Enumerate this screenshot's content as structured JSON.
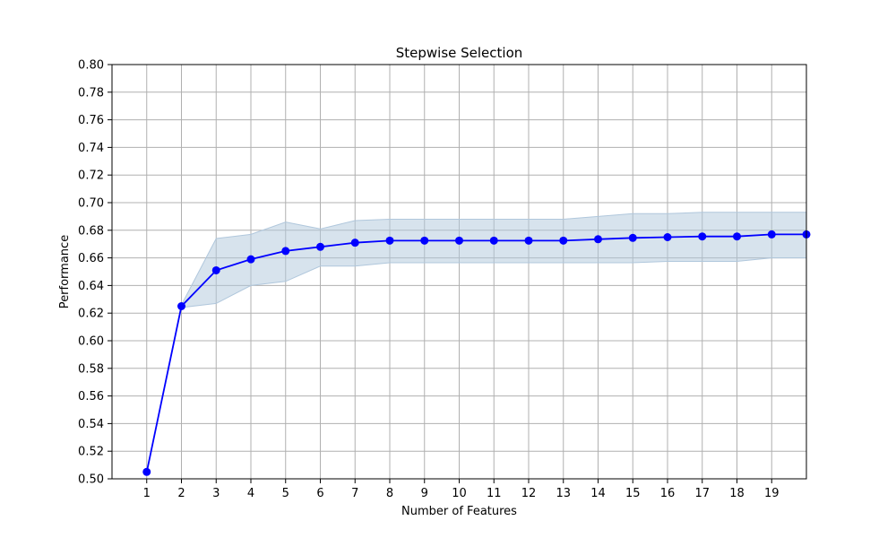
{
  "chart_data": {
    "type": "line",
    "title": "Stepwise Selection",
    "xlabel": "Number of Features",
    "ylabel": "Performance",
    "xlim": [
      0,
      20
    ],
    "ylim": [
      0.5,
      0.8
    ],
    "x_ticks": [
      1,
      2,
      3,
      4,
      5,
      6,
      7,
      8,
      9,
      10,
      11,
      12,
      13,
      14,
      15,
      16,
      17,
      18,
      19
    ],
    "y_ticks": [
      0.5,
      0.52,
      0.54,
      0.56,
      0.58,
      0.6,
      0.62,
      0.64,
      0.66,
      0.68,
      0.7,
      0.72,
      0.74,
      0.76,
      0.78,
      0.8
    ],
    "y_tick_labels": [
      "0.50",
      "0.52",
      "0.54",
      "0.56",
      "0.58",
      "0.60",
      "0.62",
      "0.64",
      "0.66",
      "0.68",
      "0.70",
      "0.72",
      "0.74",
      "0.76",
      "0.78",
      "0.80"
    ],
    "grid": true,
    "series": [
      {
        "x": [
          1,
          2,
          3,
          4,
          5,
          6,
          7,
          8,
          9,
          10,
          11,
          12,
          13,
          14,
          15,
          16,
          17,
          18,
          19,
          20
        ],
        "values": [
          0.505,
          0.625,
          0.651,
          0.659,
          0.665,
          0.668,
          0.671,
          0.6725,
          0.6725,
          0.6725,
          0.6725,
          0.6725,
          0.6725,
          0.6735,
          0.6745,
          0.675,
          0.6755,
          0.6755,
          0.677,
          0.677
        ],
        "band_upper": [
          0.505,
          0.626,
          0.674,
          0.677,
          0.686,
          0.681,
          0.687,
          0.688,
          0.688,
          0.688,
          0.688,
          0.688,
          0.688,
          0.69,
          0.692,
          0.692,
          0.693,
          0.693,
          0.693,
          0.693
        ],
        "band_lower": [
          0.505,
          0.624,
          0.627,
          0.64,
          0.643,
          0.654,
          0.654,
          0.6565,
          0.6565,
          0.6565,
          0.6565,
          0.6565,
          0.6565,
          0.6565,
          0.6565,
          0.6575,
          0.6575,
          0.6575,
          0.66,
          0.66
        ],
        "line_color": "#0000ff",
        "band_color": "#b0c7dc"
      }
    ]
  }
}
